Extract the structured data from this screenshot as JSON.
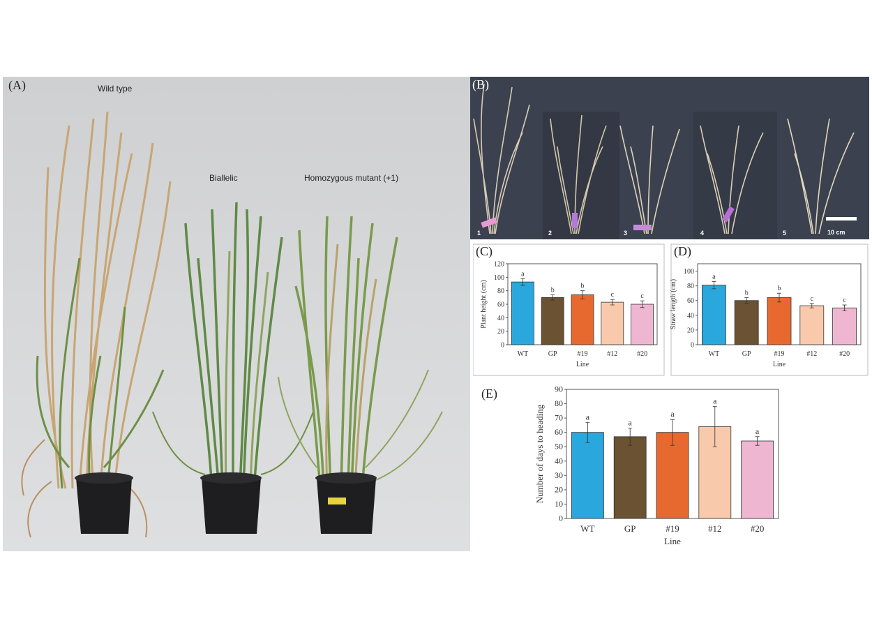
{
  "panels": {
    "a": {
      "label": "(A)",
      "plants": [
        {
          "label": "Wild type"
        },
        {
          "label": "Biallelic"
        },
        {
          "label": "Homozygous mutant (+1)"
        }
      ]
    },
    "b": {
      "label": "(B)",
      "sub_labels": [
        "1",
        "2",
        "3",
        "4",
        "5"
      ],
      "scale_bar": "10 cm"
    }
  },
  "colors": {
    "WT": "#2aa7dd",
    "GP": "#6a5233",
    "#19": "#e8692f",
    "#12": "#f8c9ab",
    "#20": "#efb6d2"
  },
  "chart_data": [
    {
      "id": "C",
      "panel_label": "(C)",
      "type": "bar",
      "categories": [
        "WT",
        "GP",
        "#19",
        "#12",
        "#20"
      ],
      "values": [
        93,
        70,
        74,
        63,
        60
      ],
      "errors": [
        5,
        4,
        6,
        4,
        5
      ],
      "letters": [
        "a",
        "b",
        "b",
        "c",
        "c"
      ],
      "xlabel": "Line",
      "ylabel": "Plant height (cm)",
      "ylim": [
        0,
        120
      ],
      "yticks": [
        0,
        20,
        40,
        60,
        80,
        100,
        120
      ]
    },
    {
      "id": "D",
      "panel_label": "(D)",
      "type": "bar",
      "categories": [
        "WT",
        "GP",
        "#19",
        "#12",
        "#20"
      ],
      "values": [
        81,
        60,
        64,
        53,
        50
      ],
      "errors": [
        5,
        4,
        6,
        3,
        4
      ],
      "letters": [
        "a",
        "b",
        "b",
        "c",
        "c"
      ],
      "xlabel": "Line",
      "ylabel": "Straw length (cm)",
      "ylim": [
        0,
        110
      ],
      "yticks": [
        0,
        20,
        40,
        60,
        80,
        100
      ]
    },
    {
      "id": "E",
      "panel_label": "(E)",
      "type": "bar",
      "categories": [
        "WT",
        "GP",
        "#19",
        "#12",
        "#20"
      ],
      "values": [
        60,
        57,
        60,
        64,
        54
      ],
      "errors": [
        7,
        6,
        9,
        14,
        3
      ],
      "letters": [
        "a",
        "a",
        "a",
        "a",
        "a"
      ],
      "xlabel": "Line",
      "ylabel": "Number of days to heading",
      "ylim": [
        0,
        90
      ],
      "yticks": [
        0,
        10,
        20,
        30,
        40,
        50,
        60,
        70,
        80,
        90
      ]
    }
  ]
}
